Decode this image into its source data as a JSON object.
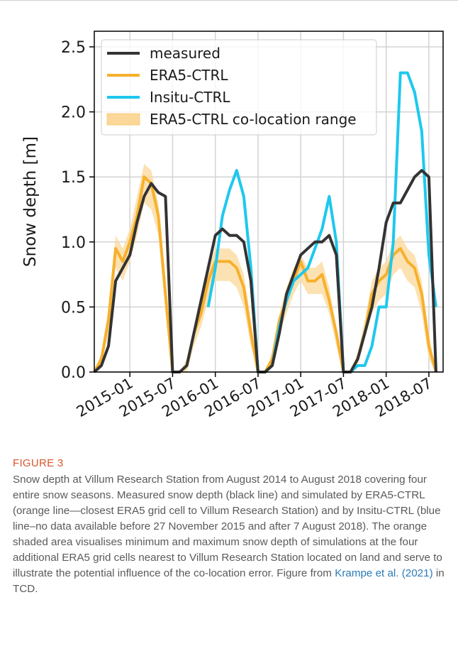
{
  "chart_data": {
    "type": "line",
    "y_label": "Snow depth [m]",
    "x": [
      "2014-08",
      "2014-09",
      "2014-10",
      "2014-11",
      "2014-12",
      "2015-01",
      "2015-02",
      "2015-03",
      "2015-04",
      "2015-05",
      "2015-06",
      "2015-07",
      "2015-08",
      "2015-09",
      "2015-10",
      "2015-11",
      "2015-12",
      "2016-01",
      "2016-02",
      "2016-03",
      "2016-04",
      "2016-05",
      "2016-06",
      "2016-07",
      "2016-08",
      "2016-09",
      "2016-10",
      "2016-11",
      "2016-12",
      "2017-01",
      "2017-02",
      "2017-03",
      "2017-04",
      "2017-05",
      "2017-06",
      "2017-07",
      "2017-08",
      "2017-09",
      "2017-10",
      "2017-11",
      "2017-12",
      "2018-01",
      "2018-02",
      "2018-03",
      "2018-04",
      "2018-05",
      "2018-06",
      "2018-07",
      "2018-08"
    ],
    "series": [
      {
        "name": "measured",
        "color": "#333333",
        "values": [
          0,
          0.05,
          0.2,
          0.7,
          0.8,
          0.9,
          1.15,
          1.35,
          1.45,
          1.38,
          1.35,
          0,
          0,
          0.05,
          0.3,
          0.55,
          0.8,
          1.05,
          1.1,
          1.05,
          1.05,
          1.0,
          0.7,
          0,
          0,
          0.05,
          0.3,
          0.6,
          0.75,
          0.9,
          0.95,
          1.0,
          1.0,
          1.05,
          0.9,
          0,
          0,
          0.1,
          0.3,
          0.5,
          0.8,
          1.15,
          1.3,
          1.3,
          1.4,
          1.5,
          1.55,
          1.5,
          0
        ]
      },
      {
        "name": "ERA5-CTRL",
        "color": "#f7b02c",
        "values": [
          0,
          0.1,
          0.4,
          0.95,
          0.85,
          1.0,
          1.2,
          1.5,
          1.45,
          1.2,
          0.6,
          0,
          0,
          0.05,
          0.3,
          0.45,
          0.7,
          0.85,
          0.85,
          0.85,
          0.8,
          0.65,
          0.3,
          0,
          0,
          0.1,
          0.4,
          0.55,
          0.7,
          0.85,
          0.7,
          0.7,
          0.75,
          0.55,
          0.3,
          0,
          0,
          0.1,
          0.3,
          0.6,
          0.7,
          0.75,
          0.9,
          0.95,
          0.85,
          0.8,
          0.6,
          0.2,
          0
        ]
      },
      {
        "name": "Insitu-CTRL",
        "color": "#1ec8ee",
        "values": [
          null,
          null,
          null,
          null,
          null,
          null,
          null,
          null,
          null,
          null,
          null,
          null,
          null,
          null,
          null,
          null,
          0.5,
          0.8,
          1.2,
          1.4,
          1.55,
          1.35,
          0.8,
          0,
          0,
          0.05,
          0.35,
          0.55,
          0.7,
          0.75,
          0.8,
          0.95,
          1.1,
          1.35,
          1.0,
          0,
          0,
          0.05,
          0.05,
          0.2,
          0.5,
          0.5,
          1.0,
          2.3,
          2.3,
          2.15,
          1.85,
          0.9,
          0.5
        ]
      }
    ],
    "range": {
      "name": "ERA5-CTRL co-location range",
      "color": "#fbd89a",
      "upper": [
        0,
        0.15,
        0.5,
        1.05,
        0.95,
        1.1,
        1.35,
        1.6,
        1.55,
        1.3,
        0.7,
        0,
        0,
        0.1,
        0.35,
        0.5,
        0.8,
        0.95,
        0.95,
        0.95,
        0.9,
        0.75,
        0.4,
        0,
        0,
        0.15,
        0.45,
        0.65,
        0.8,
        0.9,
        0.8,
        0.8,
        0.85,
        0.65,
        0.35,
        0,
        0,
        0.15,
        0.4,
        0.7,
        0.8,
        0.85,
        1.0,
        1.05,
        0.95,
        0.9,
        0.7,
        0.3,
        0
      ],
      "lower": [
        0,
        0.05,
        0.3,
        0.8,
        0.7,
        0.85,
        1.05,
        1.3,
        1.25,
        1.05,
        0.45,
        0,
        0,
        0,
        0.2,
        0.35,
        0.55,
        0.7,
        0.7,
        0.7,
        0.65,
        0.5,
        0.2,
        0,
        0,
        0.05,
        0.3,
        0.45,
        0.6,
        0.7,
        0.6,
        0.6,
        0.6,
        0.45,
        0.2,
        0,
        0,
        0.05,
        0.25,
        0.45,
        0.55,
        0.6,
        0.75,
        0.8,
        0.7,
        0.65,
        0.45,
        0.1,
        0
      ]
    },
    "xlim": [
      "2014-08",
      "2018-09"
    ],
    "xticks": [
      "2015-01",
      "2015-07",
      "2016-01",
      "2016-07",
      "2017-01",
      "2017-07",
      "2018-01",
      "2018-07"
    ],
    "ylim": [
      0,
      2.62
    ],
    "yticks": [
      {
        "value": 0,
        "label": "0.0"
      },
      {
        "value": 0.5,
        "label": "0.5"
      },
      {
        "value": 1,
        "label": "1.0"
      },
      {
        "value": 1.5,
        "label": "1.5"
      },
      {
        "value": 2,
        "label": "2.0"
      },
      {
        "value": 2.5,
        "label": "2.5"
      }
    ],
    "grid": true,
    "legend": "upper left"
  },
  "caption": {
    "label": "FIGURE 3",
    "text_before": "Snow depth at Villum Research Station from August 2014 to August 2018 covering four entire snow seasons. Measured snow depth (black line) and simulated by ERA5-CTRL (orange line—closest ERA5 grid cell to Villum Research Station) and by Insitu-CTRL (blue line–no data available before 27 November 2015 and after 7 August 2018). The orange shaded area visualises minimum and maximum snow depth of simulations at the four additional ERA5 grid cells nearest to Villum Research Station located on land and serve to illustrate the potential influence of the co-location error. Figure from",
    "link": "Krampe et al. (2021)",
    "text_after": "in TCD."
  }
}
